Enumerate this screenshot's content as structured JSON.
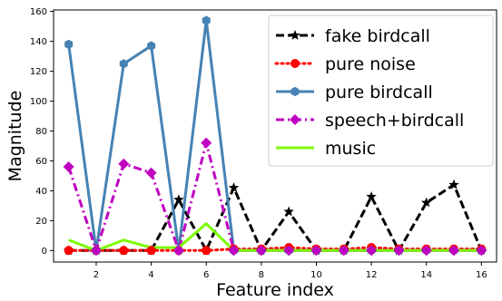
{
  "chart_data": {
    "type": "line",
    "xlabel": "Feature index",
    "ylabel": "Magnitude",
    "xlim": [
      0.45,
      16.55
    ],
    "ylim": [
      -7.7,
      161
    ],
    "xticks": [
      2,
      4,
      6,
      8,
      10,
      12,
      14,
      16
    ],
    "yticks": [
      0,
      20,
      40,
      60,
      80,
      100,
      120,
      140,
      160
    ],
    "grid": false,
    "legend_position": "top-right",
    "x": [
      1,
      2,
      3,
      4,
      5,
      6,
      7,
      8,
      9,
      10,
      11,
      12,
      13,
      14,
      15,
      16
    ],
    "series": [
      {
        "name": "fake birdcall",
        "color": "#000000",
        "dash": "dashed",
        "marker": "star",
        "values": [
          0,
          0,
          0,
          0,
          34,
          0,
          42,
          0,
          26,
          0,
          0,
          36,
          0,
          32,
          44,
          0
        ]
      },
      {
        "name": "pure noise",
        "color": "#ff0000",
        "dash": "dotted",
        "marker": "circle",
        "values": [
          0,
          0,
          0,
          0,
          0,
          0,
          1,
          1,
          2,
          1,
          1,
          2,
          1,
          1,
          1,
          1
        ]
      },
      {
        "name": "pure birdcall",
        "color": "#4682b4",
        "dash": "solid",
        "marker": "hexagon",
        "values": [
          138,
          0,
          125,
          137,
          0,
          154,
          0,
          0,
          0,
          0,
          0,
          0,
          0,
          0,
          0,
          0
        ]
      },
      {
        "name": "speech+birdcall",
        "color": "#c000c0",
        "dash": "dashdot",
        "marker": "diamond",
        "values": [
          56,
          0,
          58,
          52,
          0,
          72,
          0,
          0,
          0,
          0,
          0,
          0,
          0,
          0,
          0,
          0
        ]
      },
      {
        "name": "music",
        "color": "#7cfc00",
        "dash": "solid",
        "marker": "none",
        "values": [
          7,
          0,
          7,
          2,
          2,
          18,
          0,
          0,
          0,
          0,
          0,
          0,
          0,
          0,
          0,
          0
        ]
      }
    ]
  }
}
